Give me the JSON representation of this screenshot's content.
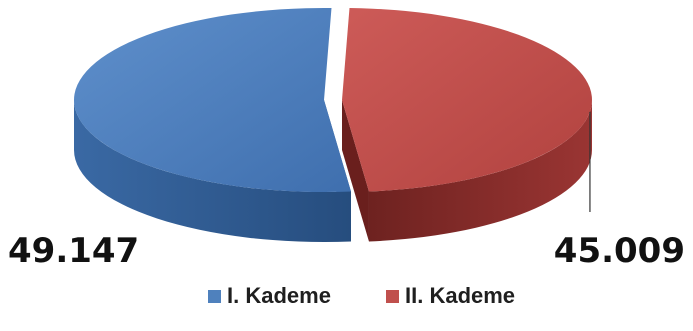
{
  "chart_data": {
    "type": "pie",
    "title": "",
    "categories": [
      "I. Kademe",
      "II. Kademe"
    ],
    "values": [
      49147,
      45009
    ],
    "data_labels": [
      "49.147",
      "45.009"
    ],
    "colors": {
      "I. Kademe": {
        "top": "#4f81bd",
        "side": "#2f5a8f",
        "side_dark": "#1f3f66"
      },
      "II. Kademe": {
        "top": "#c0504d",
        "side": "#8a2d2b",
        "side_dark": "#5a1a19"
      }
    },
    "style": "3d-exploded",
    "legend_position": "bottom"
  }
}
